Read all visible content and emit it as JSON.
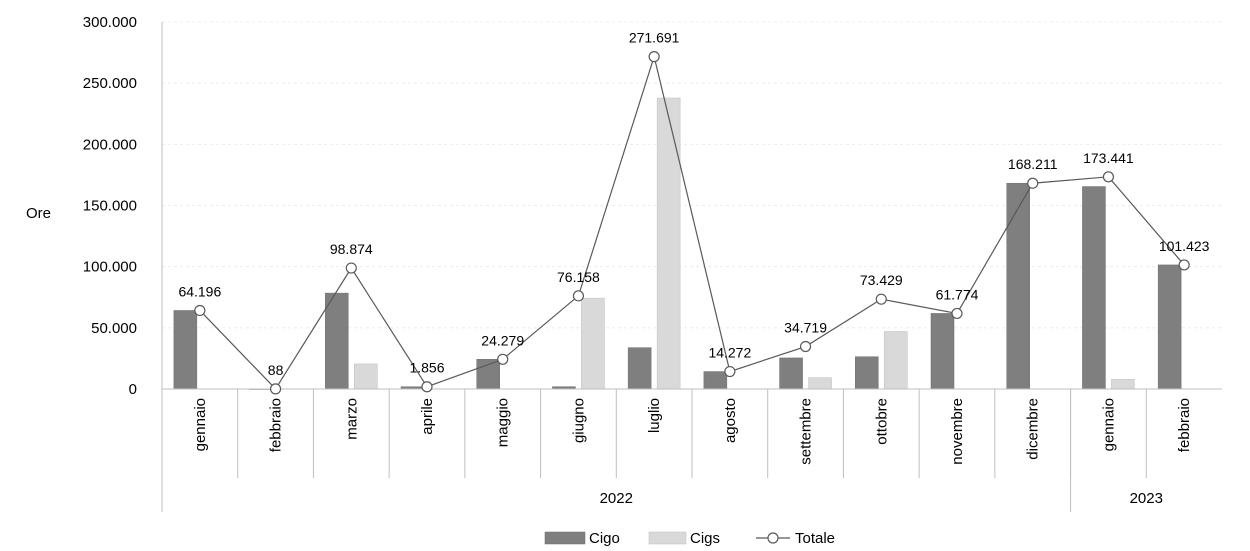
{
  "chart_data": {
    "type": "bar",
    "title": "",
    "ylabel": "Ore",
    "xlabel": "",
    "ylim": [
      0,
      300000
    ],
    "y_ticks": [
      0,
      50000,
      100000,
      150000,
      200000,
      250000,
      300000
    ],
    "y_tick_labels": [
      "0",
      "50.000",
      "100.000",
      "150.000",
      "200.000",
      "250.000",
      "300.000"
    ],
    "categories": [
      "gennaio",
      "febbraio",
      "marzo",
      "aprile",
      "maggio",
      "giugno",
      "luglio",
      "agosto",
      "settembre",
      "ottobre",
      "novembre",
      "dicembre",
      "gennaio",
      "febbraio"
    ],
    "groups": [
      {
        "label": "2022",
        "count": 12
      },
      {
        "label": "2023",
        "count": 2
      }
    ],
    "series": [
      {
        "name": "Cigo",
        "type": "bar",
        "color": "#7f7f7f",
        "values": [
          64196,
          88,
          78400,
          1856,
          24279,
          1900,
          33800,
          14272,
          25400,
          26400,
          61774,
          168211,
          165500,
          101423
        ]
      },
      {
        "name": "Cigs",
        "type": "bar",
        "color": "#d9d9d9",
        "values": [
          0,
          0,
          20500,
          0,
          0,
          74258,
          237891,
          0,
          9300,
          47029,
          0,
          0,
          7900,
          0
        ]
      },
      {
        "name": "Totale",
        "type": "line",
        "color": "#595959",
        "values": [
          64196,
          88,
          98874,
          1856,
          24279,
          76158,
          271691,
          14272,
          34719,
          73429,
          61774,
          168211,
          173441,
          101423
        ]
      }
    ],
    "data_labels": [
      "64.196",
      "88",
      "98.874",
      "1.856",
      "24.279",
      "76.158",
      "271.691",
      "14.272",
      "34.719",
      "73.429",
      "61.774",
      "168.211",
      "173.441",
      "101.423"
    ],
    "grid": true,
    "legend_position": "bottom-center"
  }
}
